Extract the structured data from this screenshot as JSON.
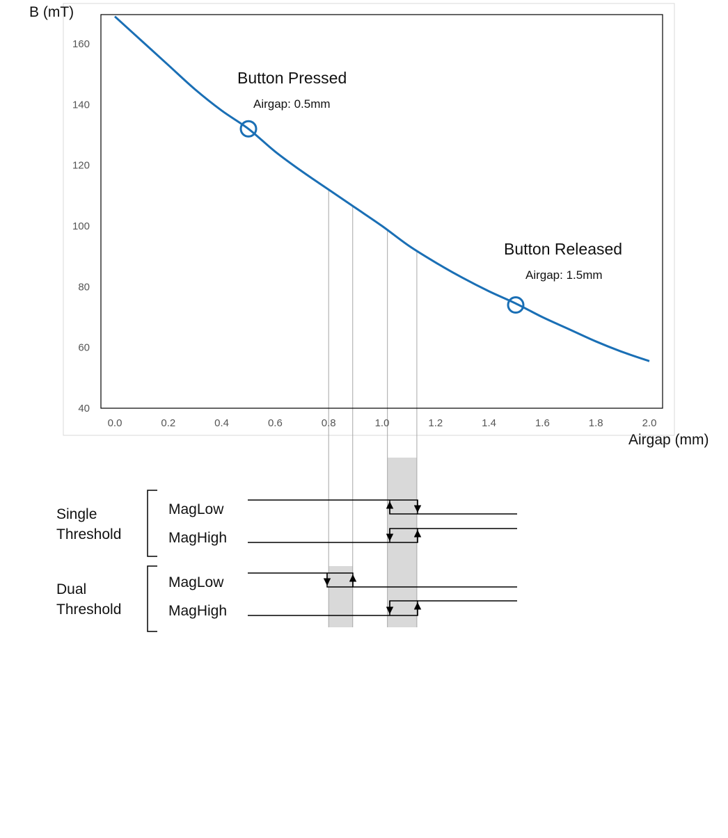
{
  "chart_data": {
    "type": "line",
    "xlabel": "Airgap (mm)",
    "ylabel": "B (mT)",
    "xlim": [
      0.0,
      2.0
    ],
    "ylim": [
      40,
      170
    ],
    "x_ticks": [
      "0.0",
      "0.2",
      "0.4",
      "0.6",
      "0.8",
      "1.0",
      "1.2",
      "1.4",
      "1.6",
      "1.8",
      "2.0"
    ],
    "y_ticks": [
      "40",
      "60",
      "80",
      "100",
      "120",
      "140",
      "160"
    ],
    "grid": false,
    "color": "#1a6fb5",
    "series": [
      {
        "x": [
          0.0,
          0.1,
          0.2,
          0.3,
          0.4,
          0.5,
          0.6,
          0.7,
          0.8,
          0.9,
          1.0,
          1.1,
          1.2,
          1.3,
          1.4,
          1.5,
          1.6,
          1.7,
          1.8,
          1.9,
          2.0
        ],
        "y": [
          169,
          161,
          153,
          145,
          138,
          132,
          124.5,
          118,
          112,
          106,
          100,
          93.5,
          88,
          83,
          78.5,
          74.5,
          70,
          66,
          62,
          58.5,
          55.5
        ]
      }
    ],
    "markers": [
      {
        "x": 0.5,
        "y": 132,
        "title": "Button Pressed",
        "subtitle": "Airgap: 0.5mm"
      },
      {
        "x": 1.5,
        "y": 74,
        "title": "Button Released",
        "subtitle": "Airgap: 1.5mm"
      }
    ],
    "threshold_airgaps": [
      0.8,
      0.89,
      1.02,
      1.13
    ]
  },
  "threshold_diagram": {
    "groups": [
      {
        "label_line1": "Single",
        "label_line2": "Threshold",
        "signals": [
          "MagLow",
          "MagHigh"
        ]
      },
      {
        "label_line1": "Dual",
        "label_line2": "Threshold",
        "signals": [
          "MagLow",
          "MagHigh"
        ]
      }
    ]
  }
}
